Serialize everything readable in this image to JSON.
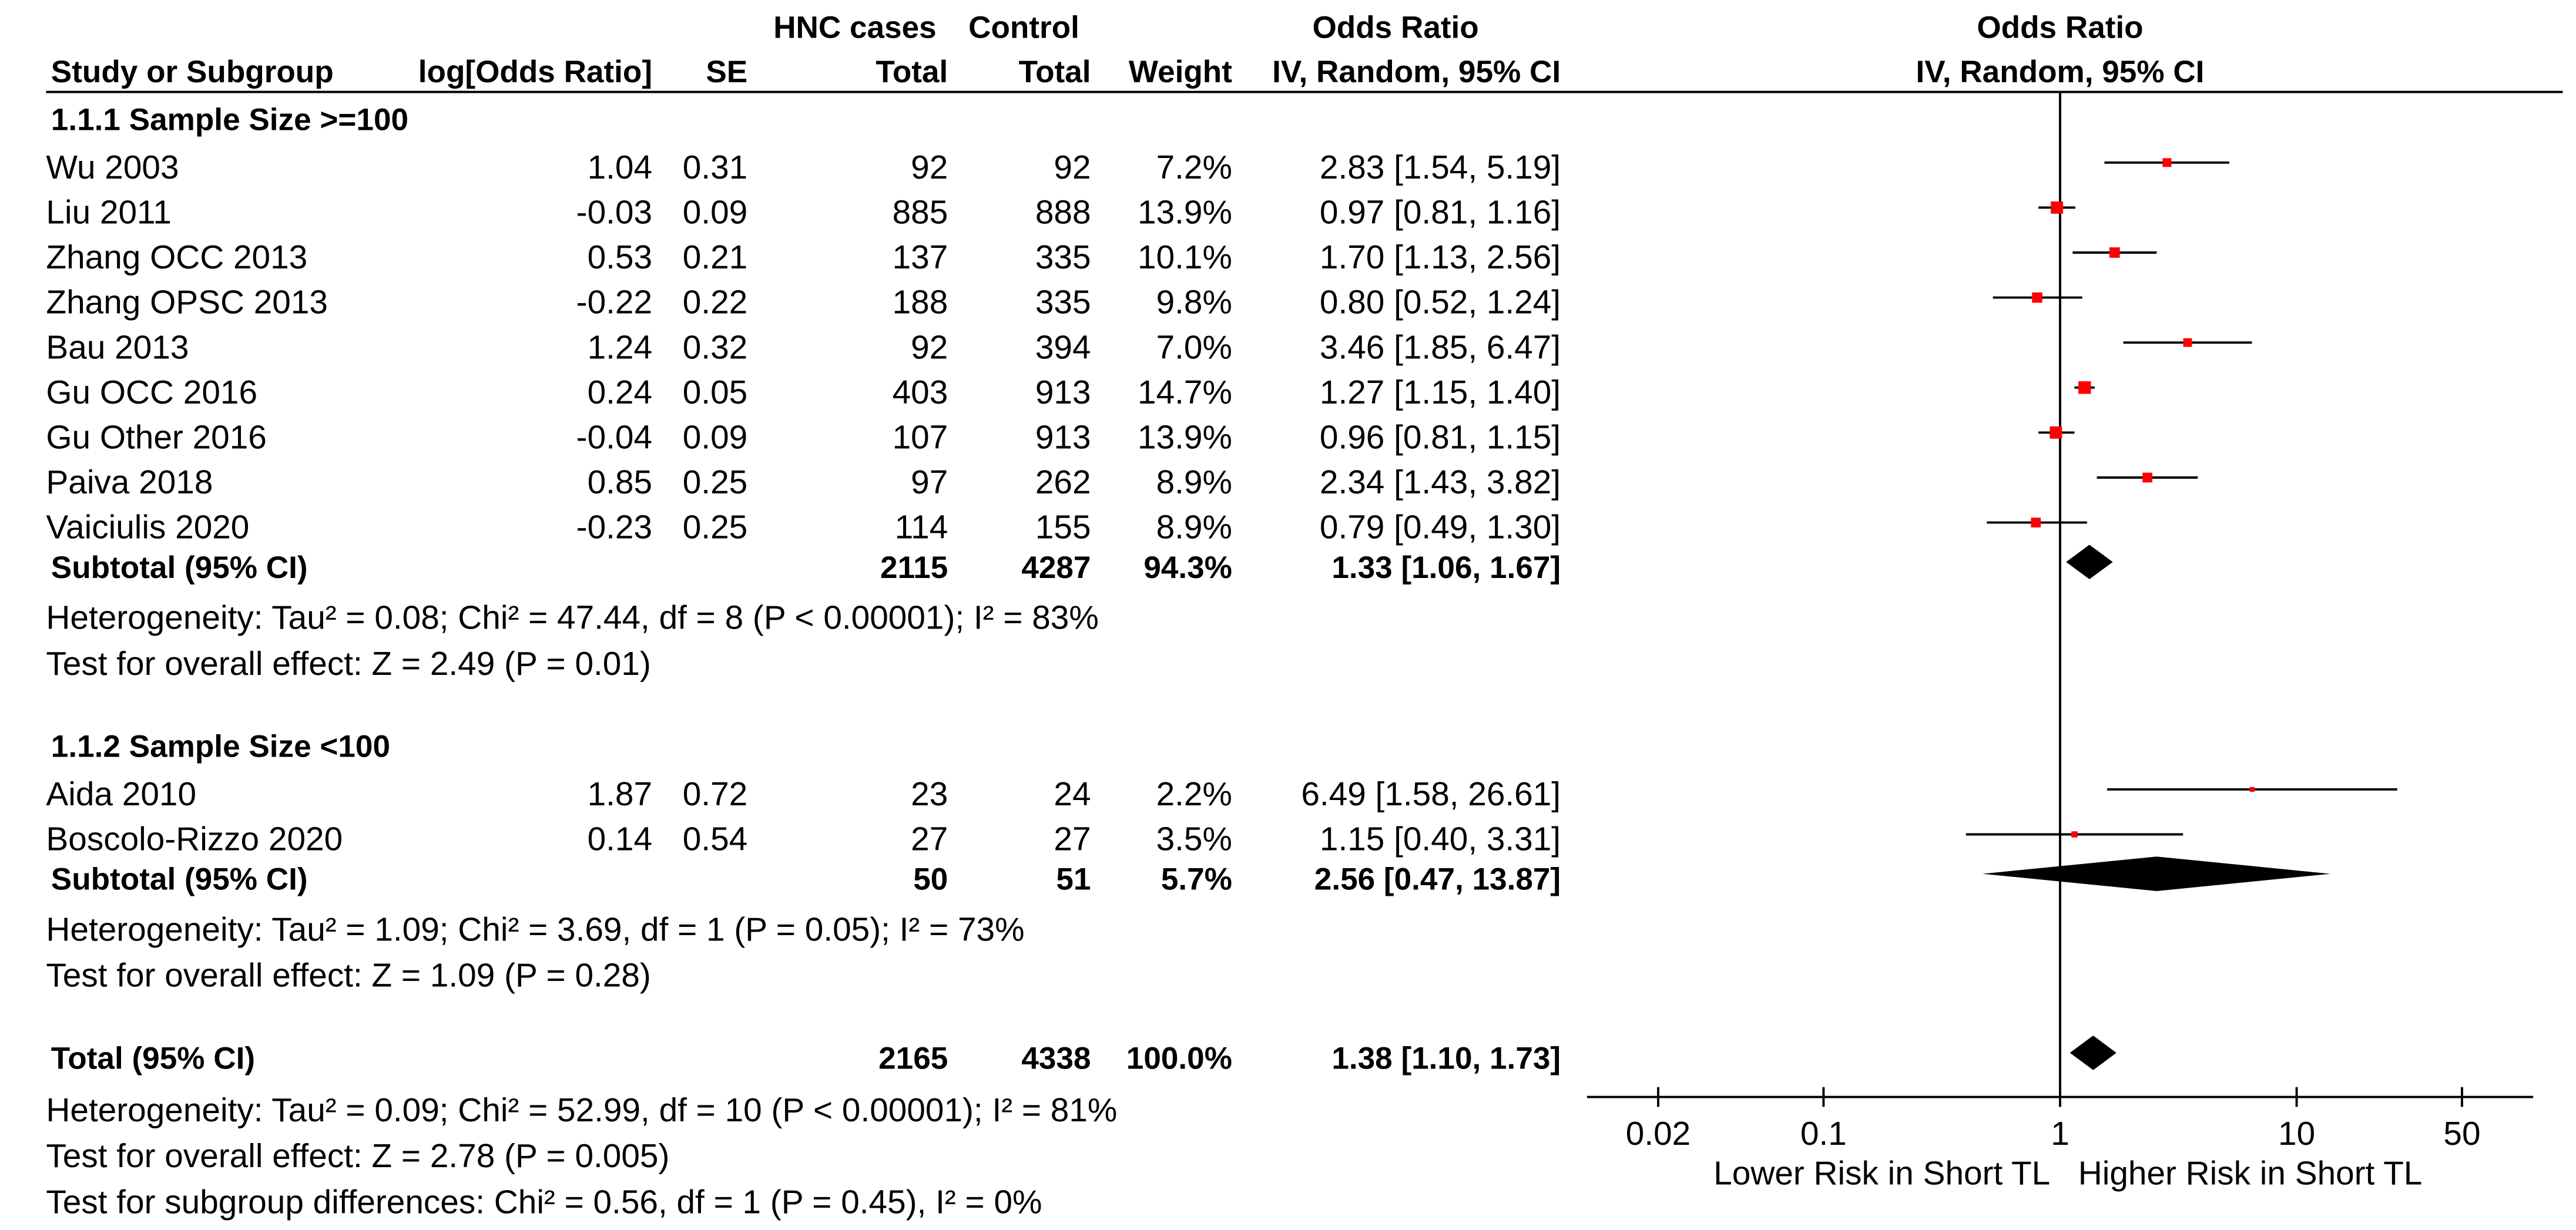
{
  "table_headers": {
    "group_hnc": "HNC cases",
    "group_control": "Control",
    "effect_title": "Odds Ratio",
    "study": "Study or Subgroup",
    "log_or": "log[Odds Ratio]",
    "se": "SE",
    "hnc_total": "Total",
    "control_total": "Total",
    "weight": "Weight",
    "effect_method": "IV, Random, 95% CI"
  },
  "plot_headers": {
    "title": "Odds Ratio",
    "method": "IV, Random, 95% CI"
  },
  "chart_data": {
    "type": "scatter",
    "variant": "forest",
    "x_scale": "log",
    "xlim": [
      0.01,
      100
    ],
    "reference_line": 1,
    "xticks": [
      0.02,
      0.1,
      1,
      10,
      50
    ],
    "xtick_labels": [
      "0.02",
      "0.1",
      "1",
      "10",
      "50"
    ],
    "left_label": "Lower Risk in Short TL",
    "right_label": "Higher Risk in Short TL",
    "grid": false,
    "colors": {
      "point_estimate": "#ff0000",
      "ci_line": "#000000",
      "diamond": "#000000"
    },
    "subgroups": [
      {
        "title": "1.1.1 Sample Size >=100",
        "studies": [
          {
            "name": "Wu 2003",
            "log_or": 1.04,
            "se": 0.31,
            "hnc_total": 92,
            "control_total": 92,
            "weight": 7.2,
            "or": 2.83,
            "ci": [
              1.54,
              5.19
            ]
          },
          {
            "name": "Liu 2011",
            "log_or": -0.03,
            "se": 0.09,
            "hnc_total": 885,
            "control_total": 888,
            "weight": 13.9,
            "or": 0.97,
            "ci": [
              0.81,
              1.16
            ]
          },
          {
            "name": "Zhang OCC 2013",
            "log_or": 0.53,
            "se": 0.21,
            "hnc_total": 137,
            "control_total": 335,
            "weight": 10.1,
            "or": 1.7,
            "ci": [
              1.13,
              2.56
            ]
          },
          {
            "name": "Zhang OPSC 2013",
            "log_or": -0.22,
            "se": 0.22,
            "hnc_total": 188,
            "control_total": 335,
            "weight": 9.8,
            "or": 0.8,
            "ci": [
              0.52,
              1.24
            ]
          },
          {
            "name": "Bau 2013",
            "log_or": 1.24,
            "se": 0.32,
            "hnc_total": 92,
            "control_total": 394,
            "weight": 7.0,
            "or": 3.46,
            "ci": [
              1.85,
              6.47
            ]
          },
          {
            "name": "Gu OCC 2016",
            "log_or": 0.24,
            "se": 0.05,
            "hnc_total": 403,
            "control_total": 913,
            "weight": 14.7,
            "or": 1.27,
            "ci": [
              1.15,
              1.4
            ]
          },
          {
            "name": "Gu Other 2016",
            "log_or": -0.04,
            "se": 0.09,
            "hnc_total": 107,
            "control_total": 913,
            "weight": 13.9,
            "or": 0.96,
            "ci": [
              0.81,
              1.15
            ]
          },
          {
            "name": "Paiva 2018",
            "log_or": 0.85,
            "se": 0.25,
            "hnc_total": 97,
            "control_total": 262,
            "weight": 8.9,
            "or": 2.34,
            "ci": [
              1.43,
              3.82
            ]
          },
          {
            "name": "Vaiciulis 2020",
            "log_or": -0.23,
            "se": 0.25,
            "hnc_total": 114,
            "control_total": 155,
            "weight": 8.9,
            "or": 0.79,
            "ci": [
              0.49,
              1.3
            ]
          }
        ],
        "subtotal": {
          "label": "Subtotal (95% CI)",
          "hnc_total": 2115,
          "control_total": 4287,
          "weight": 94.3,
          "or": 1.33,
          "ci": [
            1.06,
            1.67
          ]
        },
        "heterogeneity": "Heterogeneity: Tau² = 0.08; Chi² = 47.44, df = 8 (P < 0.00001); I² = 83%",
        "overall_effect": "Test for overall effect: Z = 2.49 (P = 0.01)"
      },
      {
        "title": "1.1.2 Sample Size <100",
        "studies": [
          {
            "name": "Aida 2010",
            "log_or": 1.87,
            "se": 0.72,
            "hnc_total": 23,
            "control_total": 24,
            "weight": 2.2,
            "or": 6.49,
            "ci": [
              1.58,
              26.61
            ]
          },
          {
            "name": "Boscolo-Rizzo 2020",
            "log_or": 0.14,
            "se": 0.54,
            "hnc_total": 27,
            "control_total": 27,
            "weight": 3.5,
            "or": 1.15,
            "ci": [
              0.4,
              3.31
            ]
          }
        ],
        "subtotal": {
          "label": "Subtotal (95% CI)",
          "hnc_total": 50,
          "control_total": 51,
          "weight": 5.7,
          "or": 2.56,
          "ci": [
            0.47,
            13.87
          ]
        },
        "heterogeneity": "Heterogeneity: Tau² = 1.09; Chi² = 3.69, df = 1 (P = 0.05); I² = 73%",
        "overall_effect": "Test for overall effect: Z = 1.09 (P = 0.28)"
      }
    ],
    "total": {
      "label": "Total (95% CI)",
      "hnc_total": 2165,
      "control_total": 4338,
      "weight": 100.0,
      "or": 1.38,
      "ci": [
        1.1,
        1.73
      ],
      "heterogeneity": "Heterogeneity: Tau² = 0.09; Chi² = 52.99, df = 10 (P < 0.00001); I² = 81%",
      "overall_effect": "Test for overall effect: Z = 2.78 (P = 0.005)"
    },
    "subgroup_test": "Test for subgroup differences: Chi² = 0.56, df = 1 (P = 0.45), I² = 0%"
  }
}
